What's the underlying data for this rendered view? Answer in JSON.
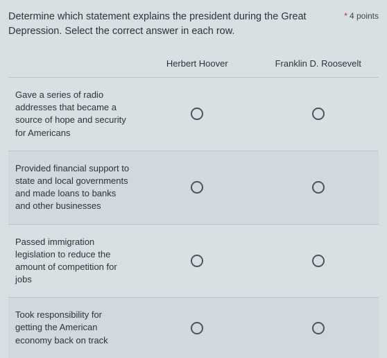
{
  "question": {
    "text": "Determine which statement explains the president during the Great Depression. Select the correct answer in each row.",
    "required_marker": "*",
    "points_label": "4 points"
  },
  "columns": [
    {
      "label": "Herbert Hoover"
    },
    {
      "label": "Franklin D. Roosevelt"
    }
  ],
  "rows": [
    {
      "label": "Gave a series of radio addresses that became a source of hope and security for Americans"
    },
    {
      "label": "Provided financial support to state and local governments and made loans to banks and other businesses"
    },
    {
      "label": "Passed immigration legislation to reduce the amount of competition for jobs"
    },
    {
      "label": "Took responsibility for getting the American economy back on track"
    }
  ],
  "style": {
    "background_color": "#d8e0e4",
    "row_alt_color": "#cfd9de",
    "border_color": "#b8c2c8",
    "text_color": "#2a3438",
    "radio_border_color": "#4a5459",
    "asterisk_color": "#c62020"
  }
}
